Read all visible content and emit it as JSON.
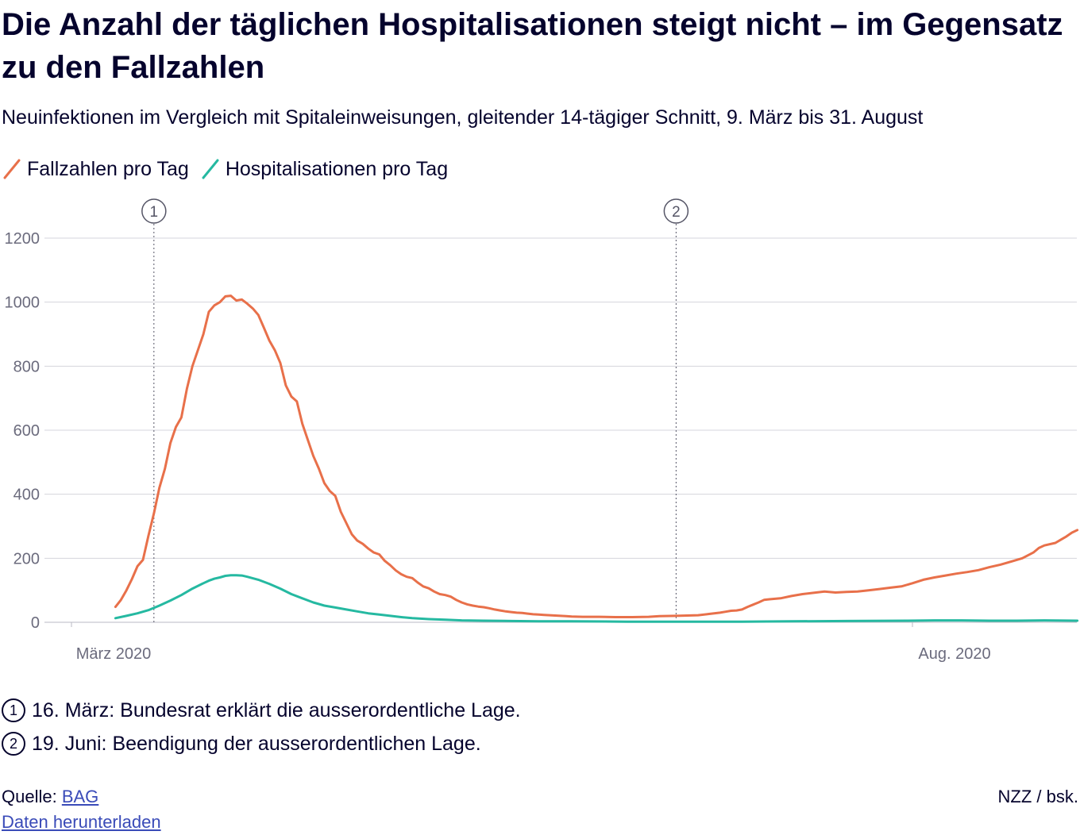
{
  "header": {
    "title": "Die Anzahl der täglichen Hospitalisationen steigt nicht – im Gegensatz zu den Fallzahlen",
    "subtitle": "Neuinfektionen im Vergleich mit Spitaleinweisungen, gleitender 14-tägiger Schnitt, 9. März bis 31. August"
  },
  "legend": {
    "cases_label": "Fallzahlen pro Tag",
    "hosp_label": "Hospitalisationen pro Tag"
  },
  "annotations": [
    {
      "marker": "1",
      "date": "2020-03-16",
      "text": "16. März: Bundesrat erklärt die ausserordentliche Lage."
    },
    {
      "marker": "2",
      "date": "2020-06-19",
      "text": "19. Juni: Beendigung der ausserordentlichen Lage."
    }
  ],
  "footer": {
    "source_prefix": "Quelle: ",
    "source_link": "BAG",
    "download_link": "Daten herunterladen",
    "credit": "NZZ / bsk."
  },
  "colors": {
    "cases": "#e8704a",
    "hospitalisations": "#25b9a1",
    "grid": "#d4d4dc",
    "text": "#05032d",
    "axis_text": "#6b6b7d",
    "link": "#3a4bb8"
  },
  "chart_data": {
    "type": "line",
    "title": "Die Anzahl der täglichen Hospitalisationen steigt nicht – im Gegensatz zu den Fallzahlen",
    "xlabel": "",
    "ylabel": "",
    "ylim": [
      0,
      1200
    ],
    "yticks": [
      "0",
      "200",
      "400",
      "600",
      "800",
      "1000",
      "1200"
    ],
    "xticks": [
      {
        "date": "2020-03-01",
        "label": "März 2020"
      },
      {
        "date": "2020-08-01",
        "label": "Aug. 2020"
      }
    ],
    "grid": true,
    "legend_position": "top-left",
    "series": [
      {
        "name": "Fallzahlen pro Tag",
        "color": "#e8704a",
        "points": [
          [
            "2020-03-09",
            48
          ],
          [
            "2020-03-10",
            70
          ],
          [
            "2020-03-11",
            100
          ],
          [
            "2020-03-12",
            135
          ],
          [
            "2020-03-13",
            175
          ],
          [
            "2020-03-14",
            195
          ],
          [
            "2020-03-15",
            270
          ],
          [
            "2020-03-16",
            340
          ],
          [
            "2020-03-17",
            420
          ],
          [
            "2020-03-18",
            480
          ],
          [
            "2020-03-19",
            560
          ],
          [
            "2020-03-20",
            610
          ],
          [
            "2020-03-21",
            640
          ],
          [
            "2020-03-22",
            730
          ],
          [
            "2020-03-23",
            800
          ],
          [
            "2020-03-24",
            850
          ],
          [
            "2020-03-25",
            900
          ],
          [
            "2020-03-26",
            970
          ],
          [
            "2020-03-27",
            990
          ],
          [
            "2020-03-28",
            1000
          ],
          [
            "2020-03-29",
            1018
          ],
          [
            "2020-03-30",
            1020
          ],
          [
            "2020-03-31",
            1005
          ],
          [
            "2020-04-01",
            1008
          ],
          [
            "2020-04-02",
            995
          ],
          [
            "2020-04-03",
            980
          ],
          [
            "2020-04-04",
            960
          ],
          [
            "2020-04-05",
            920
          ],
          [
            "2020-04-06",
            880
          ],
          [
            "2020-04-07",
            850
          ],
          [
            "2020-04-08",
            810
          ],
          [
            "2020-04-09",
            740
          ],
          [
            "2020-04-10",
            705
          ],
          [
            "2020-04-11",
            690
          ],
          [
            "2020-04-12",
            620
          ],
          [
            "2020-04-13",
            570
          ],
          [
            "2020-04-14",
            520
          ],
          [
            "2020-04-15",
            480
          ],
          [
            "2020-04-16",
            435
          ],
          [
            "2020-04-17",
            410
          ],
          [
            "2020-04-18",
            395
          ],
          [
            "2020-04-19",
            345
          ],
          [
            "2020-04-20",
            310
          ],
          [
            "2020-04-21",
            275
          ],
          [
            "2020-04-22",
            255
          ],
          [
            "2020-04-23",
            245
          ],
          [
            "2020-04-24",
            230
          ],
          [
            "2020-04-25",
            218
          ],
          [
            "2020-04-26",
            212
          ],
          [
            "2020-04-27",
            192
          ],
          [
            "2020-04-28",
            178
          ],
          [
            "2020-04-29",
            162
          ],
          [
            "2020-04-30",
            150
          ],
          [
            "2020-05-01",
            142
          ],
          [
            "2020-05-02",
            138
          ],
          [
            "2020-05-03",
            124
          ],
          [
            "2020-05-04",
            112
          ],
          [
            "2020-05-05",
            106
          ],
          [
            "2020-05-06",
            96
          ],
          [
            "2020-05-07",
            88
          ],
          [
            "2020-05-08",
            85
          ],
          [
            "2020-05-09",
            80
          ],
          [
            "2020-05-10",
            70
          ],
          [
            "2020-05-11",
            62
          ],
          [
            "2020-05-12",
            56
          ],
          [
            "2020-05-13",
            52
          ],
          [
            "2020-05-14",
            49
          ],
          [
            "2020-05-15",
            47
          ],
          [
            "2020-05-16",
            44
          ],
          [
            "2020-05-17",
            40
          ],
          [
            "2020-05-18",
            37
          ],
          [
            "2020-05-19",
            34
          ],
          [
            "2020-05-20",
            32
          ],
          [
            "2020-05-21",
            30
          ],
          [
            "2020-05-22",
            29
          ],
          [
            "2020-05-23",
            27
          ],
          [
            "2020-05-24",
            25
          ],
          [
            "2020-05-25",
            24
          ],
          [
            "2020-05-26",
            23
          ],
          [
            "2020-05-27",
            22
          ],
          [
            "2020-05-28",
            21
          ],
          [
            "2020-05-29",
            20
          ],
          [
            "2020-05-30",
            19
          ],
          [
            "2020-05-31",
            18
          ],
          [
            "2020-06-02",
            17
          ],
          [
            "2020-06-05",
            17
          ],
          [
            "2020-06-08",
            16
          ],
          [
            "2020-06-11",
            16
          ],
          [
            "2020-06-14",
            17
          ],
          [
            "2020-06-16",
            19
          ],
          [
            "2020-06-19",
            20
          ],
          [
            "2020-06-21",
            21
          ],
          [
            "2020-06-23",
            22
          ],
          [
            "2020-06-25",
            26
          ],
          [
            "2020-06-27",
            30
          ],
          [
            "2020-06-28",
            33
          ],
          [
            "2020-06-29",
            36
          ],
          [
            "2020-06-30",
            37
          ],
          [
            "2020-07-01",
            40
          ],
          [
            "2020-07-02",
            48
          ],
          [
            "2020-07-03",
            55
          ],
          [
            "2020-07-04",
            62
          ],
          [
            "2020-07-05",
            70
          ],
          [
            "2020-07-06",
            72
          ],
          [
            "2020-07-08",
            75
          ],
          [
            "2020-07-10",
            82
          ],
          [
            "2020-07-12",
            88
          ],
          [
            "2020-07-14",
            92
          ],
          [
            "2020-07-16",
            96
          ],
          [
            "2020-07-18",
            93
          ],
          [
            "2020-07-20",
            95
          ],
          [
            "2020-07-22",
            96
          ],
          [
            "2020-07-24",
            100
          ],
          [
            "2020-07-26",
            104
          ],
          [
            "2020-07-28",
            108
          ],
          [
            "2020-07-30",
            112
          ],
          [
            "2020-08-01",
            122
          ],
          [
            "2020-08-03",
            133
          ],
          [
            "2020-08-05",
            140
          ],
          [
            "2020-08-07",
            146
          ],
          [
            "2020-08-09",
            152
          ],
          [
            "2020-08-11",
            157
          ],
          [
            "2020-08-13",
            163
          ],
          [
            "2020-08-15",
            172
          ],
          [
            "2020-08-17",
            180
          ],
          [
            "2020-08-19",
            190
          ],
          [
            "2020-08-21",
            200
          ],
          [
            "2020-08-23",
            218
          ],
          [
            "2020-08-24",
            232
          ],
          [
            "2020-08-25",
            240
          ],
          [
            "2020-08-27",
            248
          ],
          [
            "2020-08-28",
            258
          ],
          [
            "2020-08-29",
            268
          ],
          [
            "2020-08-30",
            280
          ],
          [
            "2020-08-31",
            288
          ]
        ]
      },
      {
        "name": "Hospitalisationen pro Tag",
        "color": "#25b9a1",
        "points": [
          [
            "2020-03-09",
            13
          ],
          [
            "2020-03-11",
            20
          ],
          [
            "2020-03-13",
            28
          ],
          [
            "2020-03-15",
            38
          ],
          [
            "2020-03-17",
            52
          ],
          [
            "2020-03-19",
            68
          ],
          [
            "2020-03-21",
            85
          ],
          [
            "2020-03-23",
            105
          ],
          [
            "2020-03-25",
            122
          ],
          [
            "2020-03-26",
            130
          ],
          [
            "2020-03-27",
            136
          ],
          [
            "2020-03-28",
            140
          ],
          [
            "2020-03-29",
            145
          ],
          [
            "2020-03-30",
            147
          ],
          [
            "2020-03-31",
            147
          ],
          [
            "2020-04-01",
            146
          ],
          [
            "2020-04-02",
            142
          ],
          [
            "2020-04-04",
            133
          ],
          [
            "2020-04-06",
            120
          ],
          [
            "2020-04-08",
            105
          ],
          [
            "2020-04-10",
            88
          ],
          [
            "2020-04-12",
            75
          ],
          [
            "2020-04-14",
            62
          ],
          [
            "2020-04-16",
            52
          ],
          [
            "2020-04-18",
            46
          ],
          [
            "2020-04-20",
            40
          ],
          [
            "2020-04-22",
            34
          ],
          [
            "2020-04-24",
            28
          ],
          [
            "2020-04-26",
            24
          ],
          [
            "2020-04-28",
            20
          ],
          [
            "2020-04-30",
            16
          ],
          [
            "2020-05-02",
            13
          ],
          [
            "2020-05-05",
            10
          ],
          [
            "2020-05-08",
            8
          ],
          [
            "2020-05-11",
            6
          ],
          [
            "2020-05-15",
            5
          ],
          [
            "2020-05-20",
            4
          ],
          [
            "2020-05-25",
            3
          ],
          [
            "2020-05-31",
            3
          ],
          [
            "2020-06-10",
            2
          ],
          [
            "2020-06-20",
            2
          ],
          [
            "2020-07-01",
            2
          ],
          [
            "2020-07-10",
            3
          ],
          [
            "2020-07-20",
            4
          ],
          [
            "2020-07-31",
            5
          ],
          [
            "2020-08-05",
            6
          ],
          [
            "2020-08-10",
            6
          ],
          [
            "2020-08-15",
            5
          ],
          [
            "2020-08-20",
            5
          ],
          [
            "2020-08-25",
            6
          ],
          [
            "2020-08-31",
            5
          ]
        ]
      }
    ]
  }
}
